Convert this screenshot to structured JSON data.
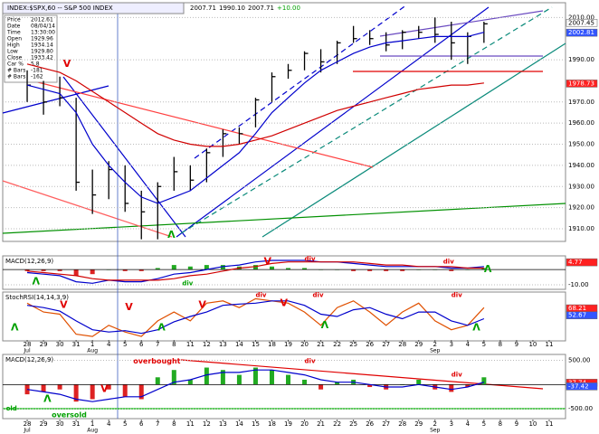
{
  "header": {
    "title": "INDEX:$SPX,60 -- S&P 500 INDEX",
    "values": [
      "2007.71",
      "1990.10",
      "2007.71",
      "+10.00"
    ]
  },
  "info_box": [
    [
      "Price",
      "2012.61"
    ],
    [
      "Date",
      "08/04/14"
    ],
    [
      "Time",
      "13:30:00"
    ],
    [
      "Open",
      "1929.96"
    ],
    [
      "High",
      "1934.14"
    ],
    [
      "Low",
      "1929.80"
    ],
    [
      "Close",
      "1933.42"
    ],
    [
      "Car %",
      "5.8"
    ],
    [
      "# Bars",
      "-181"
    ],
    [
      "# Bars",
      "-162"
    ]
  ],
  "x_axis": {
    "xlim": [
      -1.5,
      33
    ],
    "xticks": [
      {
        "value": 0,
        "label": "28"
      },
      {
        "value": 1,
        "label": "29"
      },
      {
        "value": 2,
        "label": "30"
      },
      {
        "value": 3,
        "label": "31"
      },
      {
        "value": 4,
        "label": "1"
      },
      {
        "value": 5,
        "label": "4"
      },
      {
        "value": 6,
        "label": "5"
      },
      {
        "value": 7,
        "label": "6"
      },
      {
        "value": 8,
        "label": "7"
      },
      {
        "value": 9,
        "label": "8"
      },
      {
        "value": 10,
        "label": "11"
      },
      {
        "value": 11,
        "label": "12"
      },
      {
        "value": 12,
        "label": "13"
      },
      {
        "value": 13,
        "label": "14"
      },
      {
        "value": 14,
        "label": "15"
      },
      {
        "value": 15,
        "label": "18"
      },
      {
        "value": 16,
        "label": "19"
      },
      {
        "value": 17,
        "label": "20"
      },
      {
        "value": 18,
        "label": "21"
      },
      {
        "value": 19,
        "label": "22"
      },
      {
        "value": 20,
        "label": "25"
      },
      {
        "value": 21,
        "label": "26"
      },
      {
        "value": 22,
        "label": "27"
      },
      {
        "value": 23,
        "label": "28"
      },
      {
        "value": 24,
        "label": "29"
      },
      {
        "value": 25,
        "label": "2"
      },
      {
        "value": 26,
        "label": "3"
      },
      {
        "value": 27,
        "label": "4"
      },
      {
        "value": 28,
        "label": "5"
      },
      {
        "value": 29,
        "label": "8"
      },
      {
        "value": 30,
        "label": "9"
      },
      {
        "value": 31,
        "label": "10"
      },
      {
        "value": 32,
        "label": "11"
      }
    ],
    "months": [
      {
        "value": 0,
        "label": "Jul"
      },
      {
        "value": 4,
        "label": "Aug"
      },
      {
        "value": 25,
        "label": "Sep"
      }
    ]
  },
  "chart_data": [
    {
      "type": "ohlc",
      "color": "#000000",
      "x": [
        0,
        1,
        2,
        3,
        4,
        5,
        6,
        7,
        8,
        9,
        10,
        11,
        12,
        13,
        14,
        15,
        16,
        17,
        18,
        19,
        20,
        21,
        22,
        23,
        24,
        25,
        26,
        27,
        28
      ],
      "high": [
        1985,
        1980,
        1982,
        1972,
        1938,
        1942,
        1940,
        1928,
        1932,
        1944,
        1940,
        1948,
        1957,
        1958,
        1972,
        1984,
        1988,
        1994,
        1995,
        1999,
        2006,
        2004,
        2003,
        2004,
        2006,
        2010,
        2008,
        2003,
        2008
      ],
      "low": [
        1970,
        1964,
        1968,
        1928,
        1917,
        1924,
        1918,
        1905,
        1905,
        1928,
        1928,
        1932,
        1944,
        1950,
        1958,
        1970,
        1981,
        1985,
        1984,
        1988,
        1998,
        1997,
        1994,
        1995,
        2000,
        1998,
        1990,
        1988,
        1998
      ],
      "close": [
        1978,
        1970,
        1972,
        1932,
        1926,
        1938,
        1922,
        1918,
        1930,
        1937,
        1933,
        1946,
        1955,
        1955,
        1971,
        1982,
        1985,
        1993,
        1989,
        1998,
        2000,
        2000,
        1997,
        2003,
        2003,
        2002,
        1998,
        2001,
        2007
      ],
      "lines": [
        {
          "color": "#d00000",
          "values": [
            1988,
            1986,
            1984,
            1980,
            1975,
            1970,
            1965,
            1960,
            1955,
            1952,
            1950,
            1949,
            1949,
            1950,
            1952,
            1954,
            1957,
            1960,
            1963,
            1966,
            1968,
            1970,
            1972,
            1974,
            1976,
            1977,
            1978,
            1978,
            1979
          ]
        },
        {
          "color": "#0000cc",
          "values": [
            1978,
            1976,
            1974,
            1965,
            1950,
            1940,
            1932,
            1925,
            1922,
            1925,
            1928,
            1934,
            1940,
            1946,
            1955,
            1965,
            1972,
            1979,
            1985,
            1989,
            1993,
            1996,
            1998,
            1999,
            2000,
            2001,
            2001,
            2001,
            2003
          ]
        }
      ],
      "ylim": [
        1904,
        2017
      ],
      "yticks": [
        {
          "value": 1910,
          "label": "1910.00"
        },
        {
          "value": 1920,
          "label": "1920.00"
        },
        {
          "value": 1930,
          "label": "1930.00"
        },
        {
          "value": 1940,
          "label": "1940.00"
        },
        {
          "value": 1950,
          "label": "1950.00"
        },
        {
          "value": 1960,
          "label": "1960.00"
        },
        {
          "value": 1970,
          "label": "1970.00"
        },
        {
          "value": 1990,
          "label": "1990.00"
        },
        {
          "value": 2010,
          "label": "2010.00"
        }
      ],
      "last_labels": [
        {
          "value": 2007.45,
          "label": "2007.45",
          "color": "#ffffff"
        },
        {
          "value": 2002.81,
          "label": "2002.81",
          "color": "#3355ff"
        },
        {
          "value": 1978.73,
          "label": "1978.73",
          "color": "#ff2020"
        }
      ],
      "annotations": [
        {
          "text": "V",
          "x": 2.2,
          "y": 1988,
          "color": "#e00000"
        },
        {
          "text": "Λ",
          "x": 8.6,
          "y": 1907,
          "color": "#00a000"
        }
      ]
    },
    {
      "type": "macd",
      "title": "MACD(12,26,9)",
      "hist": [
        -1,
        -1,
        -1,
        -4,
        -3,
        0,
        -1,
        -1,
        1,
        3,
        2,
        3,
        3,
        2,
        3,
        2,
        1,
        1,
        0,
        0,
        -1,
        -1,
        -1,
        -1,
        0,
        0,
        -1,
        0,
        1
      ],
      "lines": [
        {
          "color": "#0000cc",
          "values": [
            -2,
            -3,
            -4,
            -8,
            -9,
            -7,
            -8,
            -8,
            -6,
            -3,
            -2,
            0,
            2,
            3,
            5,
            6,
            6,
            6,
            5,
            5,
            4,
            3,
            2,
            2,
            2,
            2,
            1,
            1,
            2
          ]
        },
        {
          "color": "#d00000",
          "values": [
            -1,
            -2,
            -3,
            -4,
            -6,
            -7,
            -7,
            -7,
            -7,
            -6,
            -4,
            -3,
            -1,
            1,
            2,
            4,
            5,
            5,
            5,
            5,
            5,
            4,
            3,
            3,
            2,
            2,
            2,
            1,
            1
          ]
        }
      ],
      "ylim": [
        -13,
        9
      ],
      "yticks": [
        {
          "value": -10,
          "label": "-10.00"
        }
      ],
      "last_labels": [
        {
          "value": 4.77,
          "label": "4.77",
          "color": "#ff2020"
        }
      ],
      "annotations": [
        {
          "text": "Λ",
          "x": 0.3,
          "y": -8,
          "color": "#00a000"
        },
        {
          "text": "div",
          "x": 9.5,
          "y": -9,
          "color": "#00a000"
        },
        {
          "text": "V",
          "x": 14.5,
          "y": 5,
          "color": "#e00000"
        },
        {
          "text": "div",
          "x": 17,
          "y": 7,
          "color": "#e00000"
        },
        {
          "text": "div",
          "x": 25.5,
          "y": 5,
          "color": "#e00000"
        },
        {
          "text": "Λ",
          "x": 28,
          "y": 0,
          "color": "#00a000"
        }
      ]
    },
    {
      "type": "stoch",
      "title": "StochRSI(14,14,3,9)",
      "lines": [
        {
          "color": "#e05000",
          "values": [
            80,
            60,
            55,
            10,
            5,
            30,
            15,
            5,
            40,
            60,
            40,
            80,
            85,
            70,
            90,
            85,
            80,
            60,
            30,
            70,
            85,
            60,
            30,
            60,
            80,
            40,
            20,
            30,
            70
          ]
        },
        {
          "color": "#0000cc",
          "values": [
            75,
            70,
            62,
            40,
            20,
            15,
            18,
            12,
            20,
            38,
            50,
            60,
            75,
            78,
            80,
            85,
            85,
            75,
            55,
            50,
            65,
            70,
            55,
            45,
            60,
            60,
            40,
            30,
            45
          ]
        }
      ],
      "ylim": [
        -5,
        105
      ],
      "yticks": [],
      "last_labels": [
        {
          "value": 68.21,
          "label": "68.21",
          "color": "#ff2020"
        },
        {
          "value": 52.67,
          "label": "52.67",
          "color": "#3355ff"
        }
      ],
      "annotations": [
        {
          "text": "Λ",
          "x": -1,
          "y": 25,
          "color": "#00a000"
        },
        {
          "text": "V",
          "x": 2,
          "y": 75,
          "color": "#e00000"
        },
        {
          "text": "V",
          "x": 6,
          "y": 70,
          "color": "#e00000"
        },
        {
          "text": "Λ",
          "x": 8,
          "y": 25,
          "color": "#00a000"
        },
        {
          "text": "V",
          "x": 10.5,
          "y": 75,
          "color": "#e00000"
        },
        {
          "text": "div",
          "x": 14,
          "y": 98,
          "color": "#e00000"
        },
        {
          "text": "div",
          "x": 17.5,
          "y": 98,
          "color": "#e00000"
        },
        {
          "text": "V",
          "x": 15.5,
          "y": 80,
          "color": "#e00000"
        },
        {
          "text": "Λ",
          "x": 18,
          "y": 30,
          "color": "#00a000"
        },
        {
          "text": "div",
          "x": 26,
          "y": 98,
          "color": "#e00000"
        },
        {
          "text": "Λ",
          "x": 27.3,
          "y": 25,
          "color": "#00a000"
        }
      ]
    },
    {
      "type": "macd",
      "title": "MACD(12,26,9)",
      "hist": [
        -200,
        -150,
        -100,
        -350,
        -300,
        -100,
        -250,
        -300,
        150,
        300,
        100,
        350,
        300,
        200,
        350,
        300,
        200,
        100,
        -100,
        50,
        100,
        -50,
        -100,
        0,
        100,
        -100,
        -150,
        -50,
        150
      ],
      "lines": [
        {
          "color": "#0000cc",
          "values": [
            -100,
            -150,
            -200,
            -300,
            -350,
            -300,
            -250,
            -250,
            -100,
            50,
            100,
            200,
            250,
            250,
            300,
            300,
            250,
            200,
            100,
            50,
            50,
            0,
            -50,
            -50,
            0,
            -50,
            -100,
            -50,
            50
          ]
        }
      ],
      "ylim": [
        -700,
        620
      ],
      "yticks": [
        {
          "value": 500,
          "label": "500.00"
        },
        {
          "value": -500,
          "label": "-500.00"
        }
      ],
      "last_labels": [
        {
          "value": 37.74,
          "label": "37.74",
          "color": "#ff2020"
        },
        {
          "value": -37.42,
          "label": "-37.42",
          "color": "#3355ff"
        }
      ],
      "annotations": [
        {
          "text": "overbought",
          "x": 6.5,
          "y": 480,
          "color": "#e00000"
        },
        {
          "text": "oversold",
          "x": 1.5,
          "y": -630,
          "color": "#00a000"
        },
        {
          "text": "old",
          "x": -1.3,
          "y": -500,
          "color": "#00a000"
        },
        {
          "text": "div",
          "x": 17,
          "y": 480,
          "color": "#e00000"
        },
        {
          "text": "div",
          "x": 26,
          "y": 200,
          "color": "#e00000"
        },
        {
          "text": "Λ",
          "x": 1,
          "y": -300,
          "color": "#00a000"
        },
        {
          "text": "V",
          "x": 4.5,
          "y": -100,
          "color": "#e00000"
        }
      ]
    }
  ]
}
